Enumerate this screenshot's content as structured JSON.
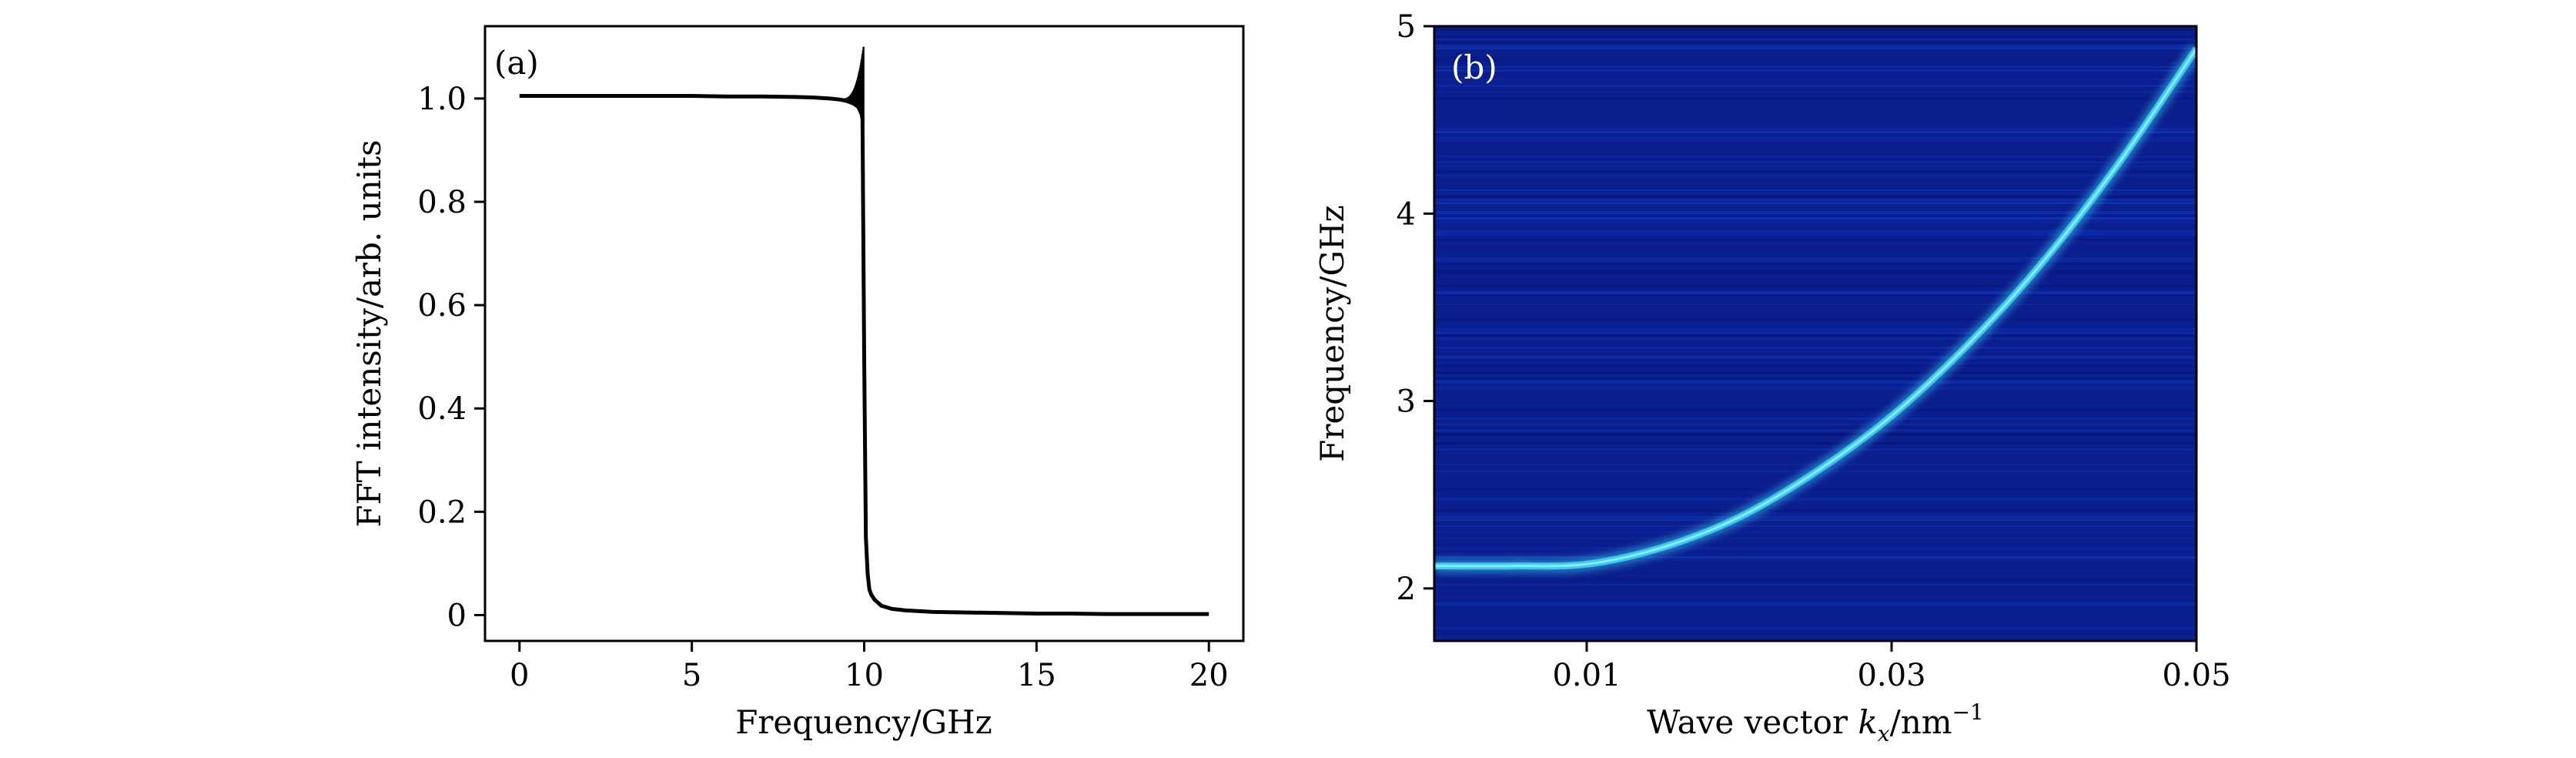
{
  "chart_data": [
    {
      "type": "line",
      "panel_label": "(a)",
      "xlabel": "Frequency/GHz",
      "ylabel": "FFT intensity/arb. units",
      "xlim": [
        -1,
        21
      ],
      "ylim": [
        -0.05,
        1.14
      ],
      "xticks": [
        0,
        5,
        10,
        15,
        20
      ],
      "xtick_labels": [
        "0",
        "5",
        "10",
        "15",
        "20"
      ],
      "yticks": [
        0,
        0.2,
        0.4,
        0.6,
        0.8,
        1.0
      ],
      "ytick_labels": [
        "0",
        "0.2",
        "0.4",
        "0.6",
        "0.8",
        "1.0"
      ],
      "grid": false,
      "line_color": "#000000",
      "series": [
        {
          "x": [
            0,
            1,
            2,
            3,
            4,
            5,
            6,
            7,
            8,
            8.5,
            9,
            9.3,
            9.5,
            9.7,
            9.8,
            9.9,
            9.95,
            10.0,
            10.05,
            10.1,
            10.15,
            10.2,
            10.3,
            10.5,
            10.8,
            11.2,
            12,
            13,
            14,
            15,
            16,
            17,
            18,
            19,
            20
          ],
          "y": [
            1.005,
            1.005,
            1.005,
            1.005,
            1.005,
            1.005,
            1.004,
            1.004,
            1.003,
            1.002,
            1.0,
            0.998,
            0.995,
            0.99,
            0.985,
            0.98,
            0.96,
            0.5,
            0.15,
            0.08,
            0.05,
            0.04,
            0.03,
            0.018,
            0.012,
            0.009,
            0.006,
            0.005,
            0.004,
            0.003,
            0.003,
            0.002,
            0.002,
            0.002,
            0.002
          ]
        }
      ],
      "oscillation_band": {
        "x_start": 9.35,
        "x_end": 9.98,
        "spike_max": 1.1,
        "spike_min": 0.95
      }
    },
    {
      "type": "heatmap",
      "panel_label": "(b)",
      "xlabel": "Wave vector k_x/nm^-1",
      "xlabel_parts": {
        "prefix": "Wave vector ",
        "var": "k",
        "sub": "x",
        "mid": "/nm",
        "sup": "−1"
      },
      "ylabel": "Frequency/GHz",
      "xlim": [
        0,
        0.05
      ],
      "ylim": [
        1.72,
        5.0
      ],
      "xticks": [
        0.01,
        0.03,
        0.05
      ],
      "xtick_labels": [
        "0.01",
        "0.03",
        "0.05"
      ],
      "yticks": [
        2,
        3,
        4,
        5
      ],
      "ytick_labels": [
        "2",
        "3",
        "4",
        "5"
      ],
      "background_color": "#0a1e8c",
      "ridge_color": "#3cc8f0",
      "ridge_core_color": "#9ff5ff",
      "dispersion": {
        "k": [
          0.0,
          0.005,
          0.01,
          0.015,
          0.02,
          0.025,
          0.03,
          0.035,
          0.04,
          0.045,
          0.05
        ],
        "f": [
          2.12,
          2.12,
          2.13,
          2.22,
          2.38,
          2.62,
          2.92,
          3.3,
          3.75,
          4.28,
          4.88
        ]
      }
    }
  ]
}
